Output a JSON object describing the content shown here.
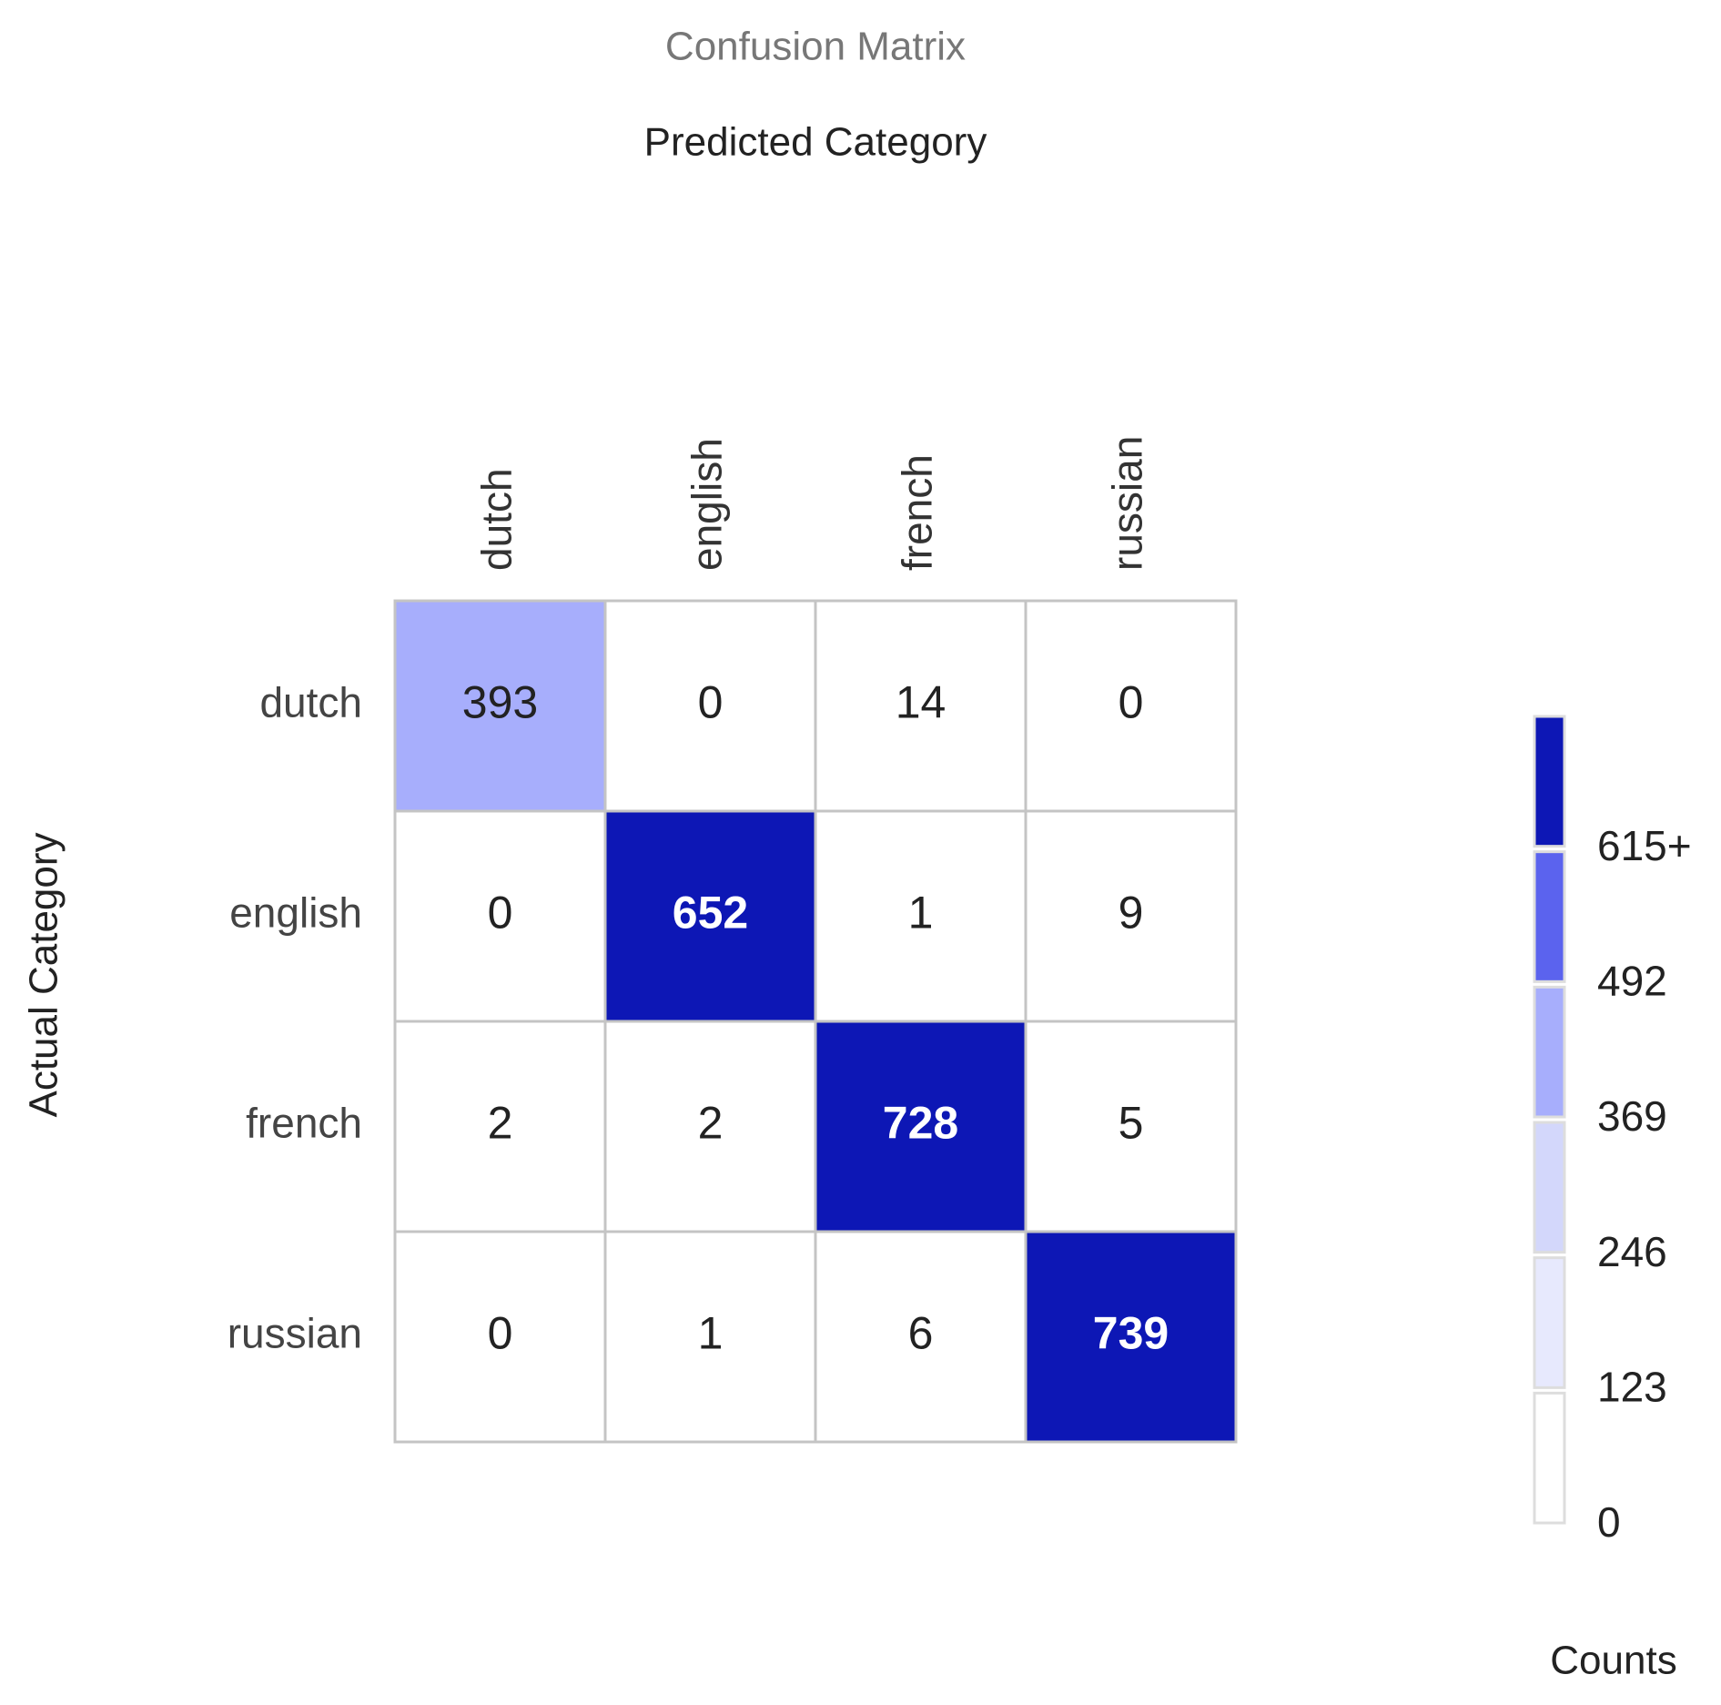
{
  "chart_data": {
    "type": "heatmap",
    "title": "Confusion Matrix",
    "x_label": "Predicted Category",
    "y_label": "Actual Category",
    "x_categories": [
      "dutch",
      "english",
      "french",
      "russian"
    ],
    "y_categories": [
      "dutch",
      "english",
      "french",
      "russian"
    ],
    "values": [
      [
        393,
        0,
        14,
        0
      ],
      [
        0,
        652,
        1,
        9
      ],
      [
        2,
        2,
        728,
        5
      ],
      [
        0,
        1,
        6,
        739
      ]
    ],
    "colorbar": {
      "label": "Counts",
      "lim": [
        0,
        738
      ],
      "ticks": [
        0,
        123,
        246,
        369,
        492,
        {
          "value": 615,
          "label": "615+"
        }
      ],
      "colors": [
        "#ffffff",
        "#e7e9fd",
        "#d3d7fb",
        "#a7aefc",
        "#5b63ee",
        "#0d17b5"
      ]
    }
  }
}
